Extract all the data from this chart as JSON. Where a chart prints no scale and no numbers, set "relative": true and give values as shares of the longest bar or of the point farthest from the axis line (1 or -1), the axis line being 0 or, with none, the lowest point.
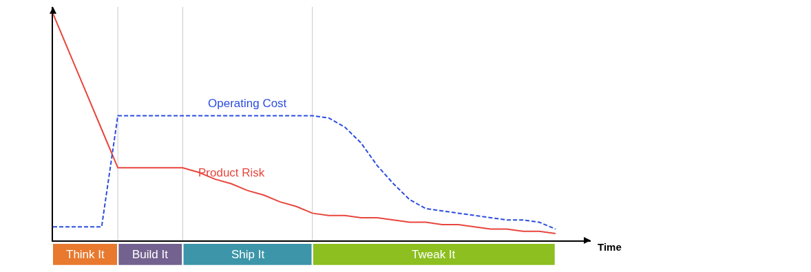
{
  "chart_data": {
    "type": "line",
    "relative": true,
    "xlabel": "Time",
    "tick_labels": false,
    "grid": "x",
    "legend": false,
    "categories": [
      null,
      null,
      null,
      null,
      null,
      null,
      null,
      null,
      null,
      null,
      null,
      null,
      null,
      null,
      null,
      null,
      null,
      null,
      null,
      null,
      null,
      null,
      null,
      null,
      null,
      null,
      null,
      null,
      null,
      null,
      null,
      null
    ],
    "series": [
      {
        "name": "Product Risk",
        "color": "#e8453c",
        "line_style": "solid",
        "values": [
          1,
          0.83,
          0.66,
          0.49,
          0.32,
          0.32,
          0.32,
          0.32,
          0.32,
          0.3,
          0.27,
          0.25,
          0.22,
          0.2,
          0.17,
          0.15,
          0.12,
          0.11,
          0.11,
          0.1,
          0.1,
          0.09,
          0.08,
          0.08,
          0.07,
          0.07,
          0.06,
          0.05,
          0.05,
          0.04,
          0.04,
          0.03
        ]
      },
      {
        "name": "Operating Cost",
        "color": "#2b4de0",
        "line_style": "dashed",
        "values": [
          0.06,
          0.06,
          0.06,
          0.06,
          0.55,
          0.55,
          0.55,
          0.55,
          0.55,
          0.55,
          0.55,
          0.55,
          0.55,
          0.55,
          0.55,
          0.55,
          0.55,
          0.54,
          0.5,
          0.43,
          0.33,
          0.25,
          0.18,
          0.14,
          0.13,
          0.12,
          0.11,
          0.1,
          0.09,
          0.09,
          0.08,
          0.05
        ]
      }
    ],
    "annotations": [
      "Think It",
      "Build It",
      "Ship It",
      "Tweak It"
    ],
    "colors": [
      "#e8792e",
      "#73628f",
      "#3c95a8",
      "#8cbf1f"
    ]
  }
}
